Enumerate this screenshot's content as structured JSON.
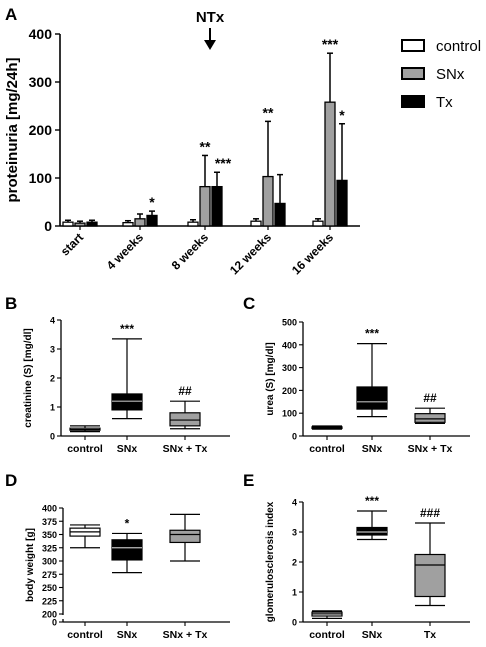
{
  "panels": {
    "A": "A",
    "B": "B",
    "C": "C",
    "D": "D",
    "E": "E"
  },
  "annotation_arrow": "NTx",
  "chart_data": [
    {
      "panel": "A",
      "type": "bar",
      "ylabel": "proteinuria [mg/24h]",
      "ylim": [
        0,
        400
      ],
      "yticks": [
        0,
        100,
        200,
        300,
        400
      ],
      "categories": [
        "start",
        "4 weeks",
        "8 weeks",
        "12 weeks",
        "16 weeks"
      ],
      "legend_position": "top-right",
      "series": [
        {
          "name": "control",
          "color": "#ffffff",
          "values": [
            8,
            7,
            8,
            10,
            10
          ],
          "errors": [
            4,
            4,
            5,
            5,
            5
          ]
        },
        {
          "name": "SNx",
          "color": "#a0a0a0",
          "values": [
            6,
            15,
            82,
            103,
            258
          ],
          "errors": [
            4,
            10,
            65,
            115,
            102
          ]
        },
        {
          "name": "Tx",
          "color": "#000000",
          "values": [
            8,
            22,
            82,
            47,
            95
          ],
          "errors": [
            4,
            9,
            30,
            60,
            118
          ]
        }
      ],
      "significance": [
        {
          "category": "4 weeks",
          "series": "Tx",
          "label": "*"
        },
        {
          "category": "8 weeks",
          "series": "SNx",
          "label": "**"
        },
        {
          "category": "8 weeks",
          "series": "Tx",
          "label": "***"
        },
        {
          "category": "12 weeks",
          "series": "SNx",
          "label": "**"
        },
        {
          "category": "16 weeks",
          "series": "SNx",
          "label": "***"
        },
        {
          "category": "16 weeks",
          "series": "Tx",
          "label": "*"
        }
      ]
    },
    {
      "panel": "B",
      "type": "box",
      "ylabel": "creatinine (S) [mg/dl]",
      "ylim": [
        0,
        4
      ],
      "yticks": [
        0,
        1,
        2,
        3,
        4
      ],
      "categories": [
        "control",
        "SNx",
        "SNx + Tx"
      ],
      "boxes": [
        {
          "min": 0.15,
          "q1": 0.2,
          "median": 0.22,
          "q3": 0.27,
          "max": 0.35,
          "color": "#ffffff"
        },
        {
          "min": 0.6,
          "q1": 0.9,
          "median": 1.2,
          "q3": 1.45,
          "max": 3.35,
          "color": "#000000"
        },
        {
          "min": 0.25,
          "q1": 0.35,
          "median": 0.55,
          "q3": 0.8,
          "max": 1.2,
          "color": "#a0a0a0"
        }
      ],
      "significance": [
        {
          "category": "SNx",
          "label": "***"
        },
        {
          "category": "SNx + Tx",
          "label": "##"
        }
      ]
    },
    {
      "panel": "C",
      "type": "box",
      "ylabel": "urea (S) [mg/dl]",
      "ylim": [
        0,
        500
      ],
      "yticks": [
        0,
        100,
        200,
        300,
        400,
        500
      ],
      "categories": [
        "control",
        "SNx",
        "SNx + Tx"
      ],
      "boxes": [
        {
          "min": 30,
          "q1": 33,
          "median": 37,
          "q3": 40,
          "max": 44,
          "color": "#ffffff"
        },
        {
          "min": 85,
          "q1": 118,
          "median": 150,
          "q3": 215,
          "max": 405,
          "color": "#000000"
        },
        {
          "min": 55,
          "q1": 60,
          "median": 75,
          "q3": 98,
          "max": 122,
          "color": "#a0a0a0"
        }
      ],
      "significance": [
        {
          "category": "SNx",
          "label": "***"
        },
        {
          "category": "SNx + Tx",
          "label": "##"
        }
      ]
    },
    {
      "panel": "D",
      "type": "box",
      "ylabel": "body weight [g]",
      "ylim": [
        0,
        400
      ],
      "yticks": [
        0,
        200,
        225,
        250,
        275,
        300,
        325,
        350,
        375,
        400
      ],
      "axis_break": true,
      "categories": [
        "control",
        "SNx",
        "SNx + Tx"
      ],
      "boxes": [
        {
          "min": 325,
          "q1": 347,
          "median": 355,
          "q3": 362,
          "max": 368,
          "color": "#ffffff"
        },
        {
          "min": 278,
          "q1": 302,
          "median": 325,
          "q3": 340,
          "max": 352,
          "color": "#000000"
        },
        {
          "min": 300,
          "q1": 335,
          "median": 350,
          "q3": 358,
          "max": 388,
          "color": "#a0a0a0"
        }
      ],
      "significance": [
        {
          "category": "SNx",
          "label": "*"
        }
      ]
    },
    {
      "panel": "E",
      "type": "box",
      "ylabel": "glomerulosclerosis index",
      "ylim": [
        0,
        4
      ],
      "yticks": [
        0,
        1,
        2,
        3,
        4
      ],
      "categories": [
        "control",
        "SNx",
        "Tx"
      ],
      "boxes": [
        {
          "min": 0.12,
          "q1": 0.2,
          "median": 0.27,
          "q3": 0.33,
          "max": 0.37,
          "color": "#ffffff"
        },
        {
          "min": 2.75,
          "q1": 2.9,
          "median": 3.0,
          "q3": 3.15,
          "max": 3.7,
          "color": "#000000"
        },
        {
          "min": 0.55,
          "q1": 0.85,
          "median": 1.9,
          "q3": 2.25,
          "max": 3.3,
          "color": "#a0a0a0"
        }
      ],
      "significance": [
        {
          "category": "SNx",
          "label": "***"
        },
        {
          "category": "Tx",
          "label": "###"
        }
      ]
    }
  ]
}
